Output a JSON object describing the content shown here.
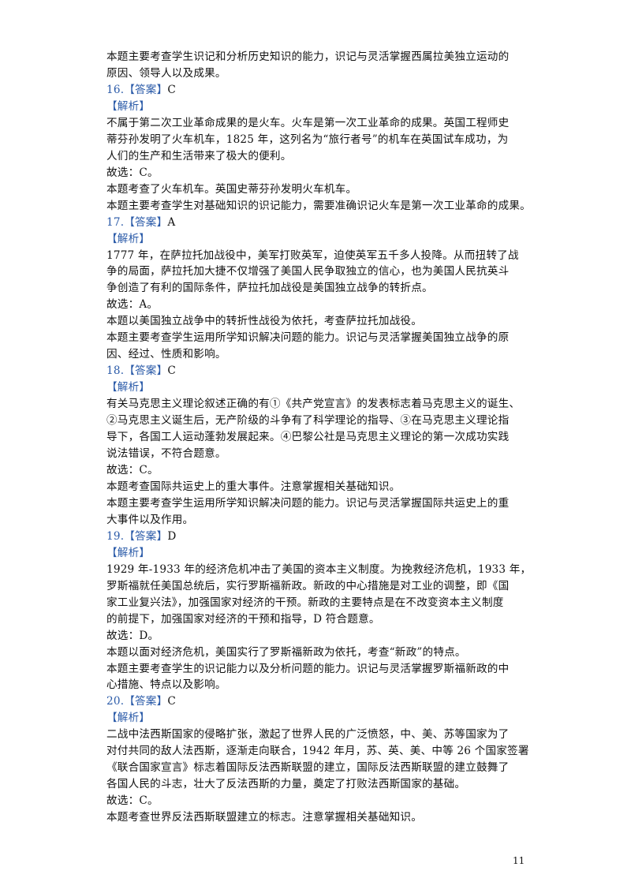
{
  "lines": [
    {
      "text": "本题主要考查学生识记和分析历史知识的能力，识记与灵活掌握西属拉美独立运动的"
    },
    {
      "text": "原因、领导人以及成果。"
    },
    {
      "number": "16.",
      "tag": "【答案】",
      "answer": "C"
    },
    {
      "tag": "【解析】"
    },
    {
      "text": "不属于第二次工业革命成果的是火车。火车是第一次工业革命的成果。英国工程师史"
    },
    {
      "text": "蒂芬孙发明了火车机车，1825 年，这列名为“旅行者号”的机车在英国试车成功，为"
    },
    {
      "text": "人们的生产和生活带来了极大的便利。"
    },
    {
      "text": "故选：C。"
    },
    {
      "text": "本题考查了火车机车。英国史蒂芬孙发明火车机车。"
    },
    {
      "text": "本题主要考查学生对基础知识的识记能力，需要准确识记火车是第一次工业革命的成果。"
    },
    {
      "number": "17.",
      "tag": "【答案】",
      "answer": "A"
    },
    {
      "tag": "【解析】"
    },
    {
      "text": "1777 年，在萨拉托加战役中，美军打败英军，迫使英军五千多人投降。从而扭转了战"
    },
    {
      "text": "争的局面，萨拉托加大捷不仅增强了美国人民争取独立的信心，也为美国人民抗英斗"
    },
    {
      "text": "争创造了有利的国际条件，萨拉托加战役是美国独立战争的转折点。"
    },
    {
      "text": "故选：A。"
    },
    {
      "text": "本题以美国独立战争中的转折性战役为依托，考查萨拉托加战役。"
    },
    {
      "text": "本题主要考查学生运用所学知识解决问题的能力。识记与灵活掌握美国独立战争的原"
    },
    {
      "text": "因、经过、性质和影响。"
    },
    {
      "number": "18.",
      "tag": "【答案】",
      "answer": "C"
    },
    {
      "tag": "【解析】"
    },
    {
      "text": "有关马克思主义理论叙述正确的有①《共产党宣言》的发表标志着马克思主义的诞生、"
    },
    {
      "text": "②马克思主义诞生后，无产阶级的斗争有了科学理论的指导、③在马克思主义理论指"
    },
    {
      "text": "导下，各国工人运动蓬勃发展起来。④巴黎公社是马克思主义理论的第一次成功实践"
    },
    {
      "text": "说法错误，不符合题意。"
    },
    {
      "text": "故选：C。"
    },
    {
      "text": "本题考查国际共运史上的重大事件。注意掌握相关基础知识。"
    },
    {
      "text": "本题主要考查学生运用所学知识解决问题的能力。识记与灵活掌握国际共运史上的重"
    },
    {
      "text": "大事件以及作用。"
    },
    {
      "number": "19.",
      "tag": "【答案】",
      "answer": "D"
    },
    {
      "tag": "【解析】"
    },
    {
      "text": "1929 年-1933 年的经济危机冲击了美国的资本主义制度。为挽救经济危机，1933 年，"
    },
    {
      "text": "罗斯福就任美国总统后，实行罗斯福新政。新政的中心措施是对工业的调整，即《国"
    },
    {
      "text": "家工业复兴法》，加强国家对经济的干预。新政的主要特点是在不改变资本主义制度"
    },
    {
      "text": "的前提下，加强国家对经济的干预和指导，D 符合题意。"
    },
    {
      "text": "故选：D。"
    },
    {
      "text": "本题以面对经济危机，美国实行了罗斯福新政为依托，考查“新政”的特点。"
    },
    {
      "text": "本题主要考查学生的识记能力以及分析问题的能力。识记与灵活掌握罗斯福新政的中"
    },
    {
      "text": "心措施、特点以及影响。"
    },
    {
      "number": "20.",
      "tag": "【答案】",
      "answer": "C"
    },
    {
      "tag": "【解析】"
    },
    {
      "text": "二战中法西斯国家的侵略扩张，激起了世界人民的广泛愤怒，中、美、苏等国家为了"
    },
    {
      "text": "对付共同的敌人法西斯，逐渐走向联合，1942 年月，苏、英、美、中等 26 个国家签署"
    },
    {
      "text": "《联合国家宣言》标志着国际反法西斯联盟的建立，国际反法西斯联盟的建立鼓舞了"
    },
    {
      "text": "各国人民的斗志，壮大了反法西斯的力量，奠定了打败法西斯国家的基础。"
    },
    {
      "text": "故选：C。"
    },
    {
      "text": "本题考查世界反法西斯联盟建立的标志。注意掌握相关基础知识。"
    }
  ],
  "page_number": "11"
}
